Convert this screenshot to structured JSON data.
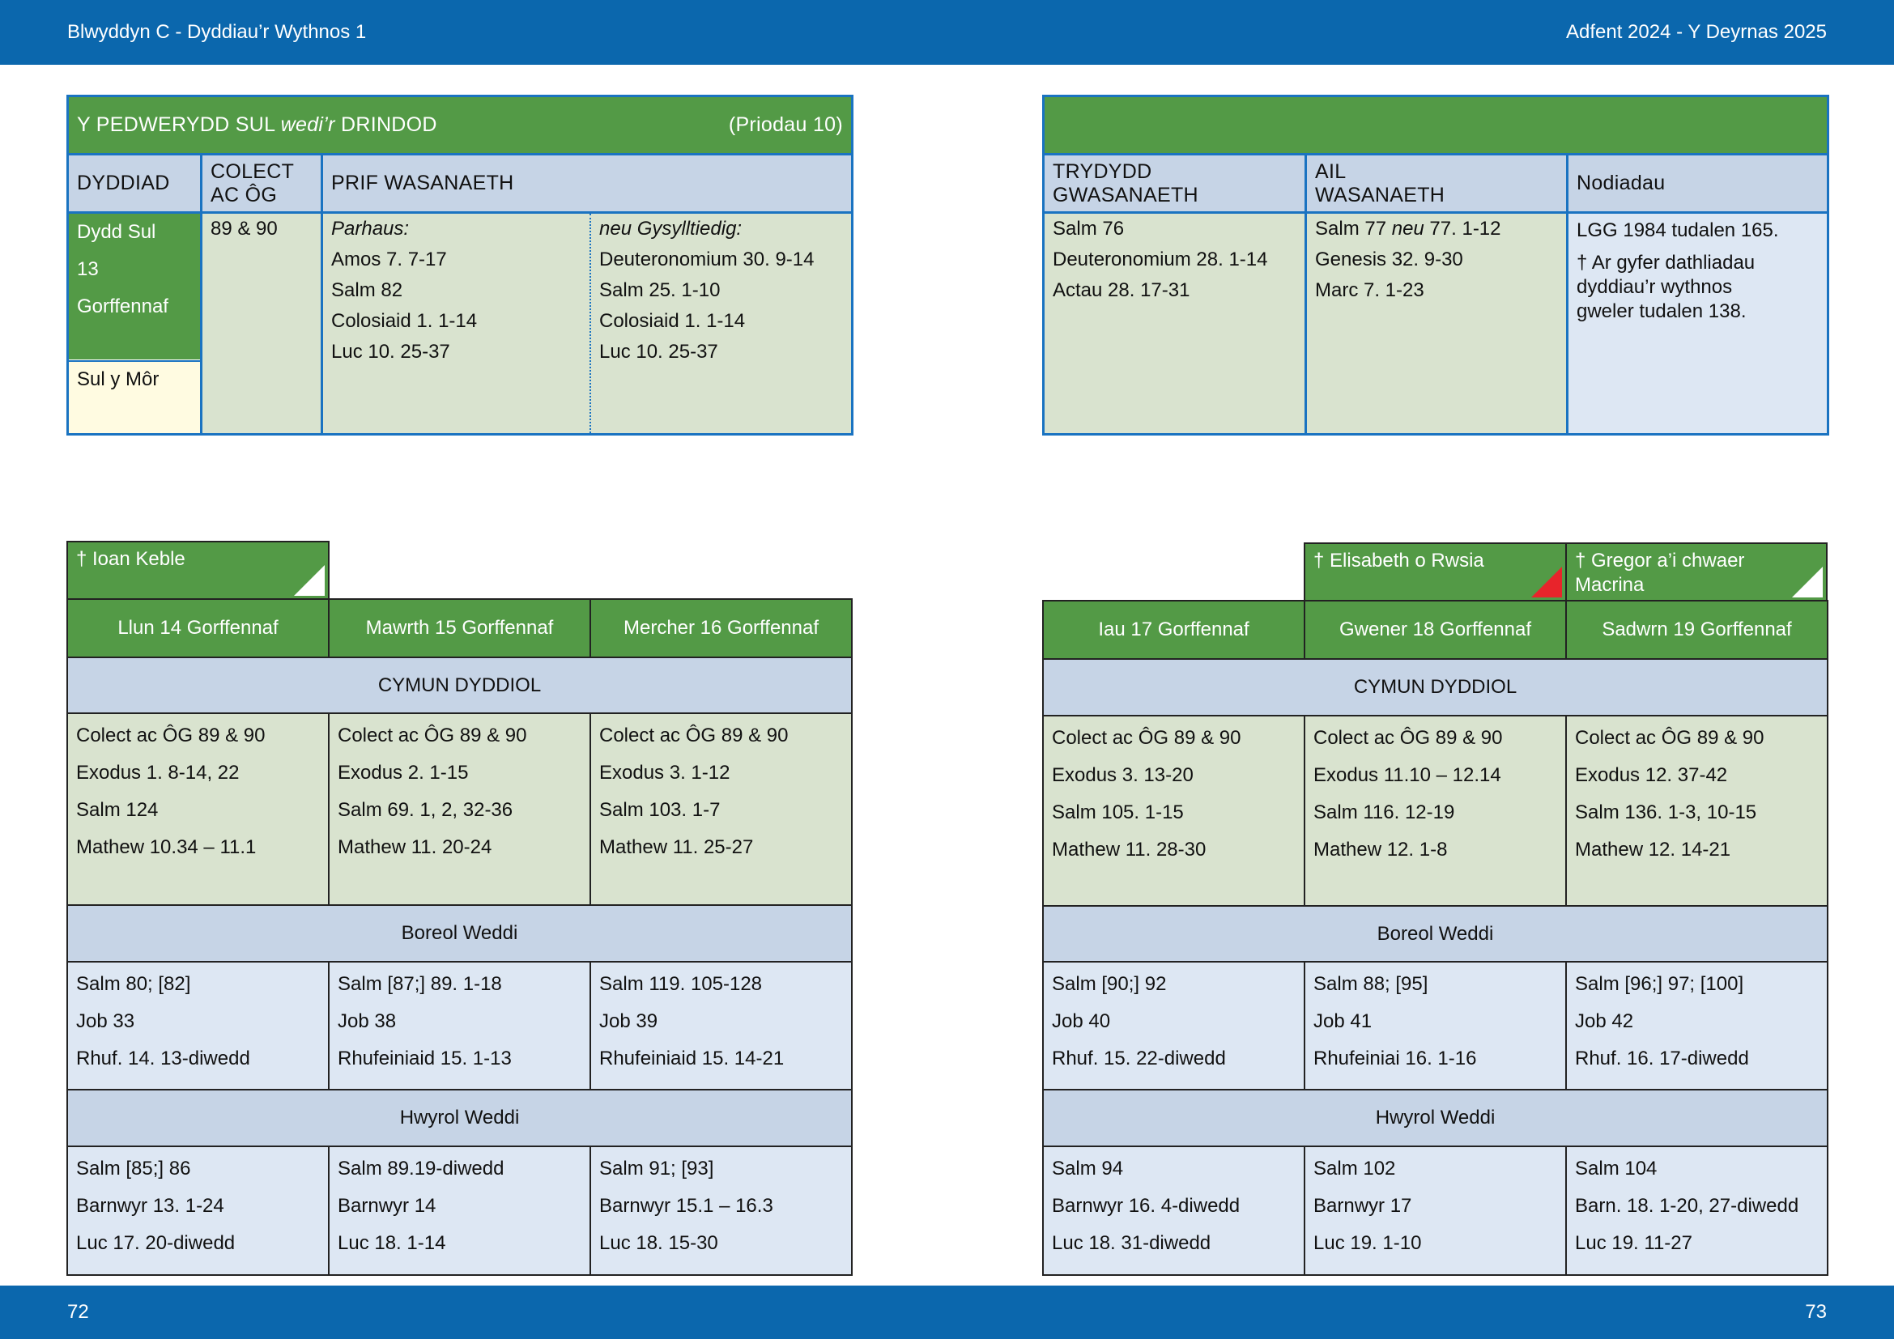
{
  "header": {
    "left": "Blwyddyn  C - Dyddiau’r Wythnos 1",
    "right": "Adfent  2024 - Y Deyrnas 2025"
  },
  "footer": {
    "page_left": "72",
    "page_right": "73"
  },
  "sunday": {
    "title_pre": "Y PEDWERYDD SUL ",
    "title_italic": "wedi’r",
    "title_post": " DRINDOD",
    "ref": "(Priodau 10)",
    "col_date": "DYDDIAD",
    "col_collect_1": "COLECT",
    "col_collect_2": "AC ÔG",
    "col_main": "PRIF WASANAETH",
    "date_lines": [
      "Dydd Sul",
      "13",
      "Gorffennaf"
    ],
    "sunday_name": "Sul y Môr",
    "collect": "89 & 90",
    "main_a_head": "Parhaus:",
    "main_a": [
      "Amos 7. 7-17",
      "Salm 82",
      "Colosiaid 1. 1-14",
      "Luc 10. 25-37"
    ],
    "main_b_head": "neu Gysylltiedig:",
    "main_b": [
      "Deuteronomium 30. 9-14",
      "Salm 25. 1-10",
      "Colosiaid 1. 1-14",
      "Luc 10. 25-37"
    ],
    "col_third_1": "TRYDYDD",
    "col_third_2": "GWASANAETH",
    "col_second_1": "AIL",
    "col_second_2": "WASANAETH",
    "col_notes": "Nodiadau",
    "third": [
      "Salm 76",
      "Deuteronomium 28. 1-14",
      "Actau 28. 17-31"
    ],
    "second_first_pre": "Salm 77 ",
    "second_first_italic": "neu",
    "second_first_post": "  77. 1-12",
    "second_rest": [
      "Genesis 32. 9-30",
      "Marc 7. 1-23"
    ],
    "notes_1": "LGG 1984 tudalen 165.",
    "notes_2": [
      "† Ar gyfer dathliadau",
      "dyddiau’r wythnos",
      "gweler tudalen 138."
    ]
  },
  "left_week": {
    "tabs": [
      {
        "label": "† Ioan Keble",
        "marker_color": "#ffffff"
      }
    ],
    "days": [
      "Llun 14 Gorffennaf",
      "Mawrth 15 Gorffennaf",
      "Mercher 16 Gorffennaf"
    ],
    "euch_label": "CYMUN DYDDIOL",
    "euch": [
      [
        "Colect ac ÔG 89 & 90",
        "Exodus 1. 8-14, 22",
        "Salm 124",
        "Mathew 10.34 – 11.1"
      ],
      [
        "Colect ac ÔG 89 & 90",
        "Exodus 2. 1-15",
        "Salm 69. 1, 2, 32-36",
        "Mathew 11. 20-24"
      ],
      [
        "Colect ac ÔG 89 & 90",
        "Exodus 3. 1-12",
        "Salm 103. 1-7",
        "Mathew 11. 25-27"
      ]
    ],
    "morning_label": "Boreol Weddi",
    "morning": [
      [
        "Salm 80; [82]",
        "Job 33",
        "Rhuf. 14. 13-diwedd"
      ],
      [
        "Salm [87;] 89. 1-18",
        "Job 38",
        "Rhufeiniaid 15. 1-13"
      ],
      [
        "Salm 119. 105-128",
        "Job 39",
        "Rhufeiniaid 15. 14-21"
      ]
    ],
    "evening_label": "Hwyrol Weddi",
    "evening": [
      [
        "Salm [85;] 86",
        "Barnwyr 13. 1-24",
        "Luc 17. 20-diwedd"
      ],
      [
        "Salm 89.19-diwedd",
        "Barnwyr 14",
        "Luc 18. 1-14"
      ],
      [
        "Salm 91; [93]",
        "Barnwyr 15.1 – 16.3",
        "Luc 18. 15-30"
      ]
    ]
  },
  "right_week": {
    "tabs": [
      {
        "label": "† Elisabeth o Rwsia",
        "marker_color": "#e8242b"
      },
      {
        "label_1": "† Gregor a’i chwaer",
        "label_2": "Macrina",
        "marker_color": "#ffffff"
      }
    ],
    "days": [
      "Iau 17 Gorffennaf",
      "Gwener 18 Gorffennaf",
      "Sadwrn 19 Gorffennaf"
    ],
    "euch_label": "CYMUN DYDDIOL",
    "euch": [
      [
        "Colect ac ÔG 89 & 90",
        "Exodus 3. 13-20",
        "Salm 105. 1-15",
        "Mathew 11. 28-30"
      ],
      [
        "Colect ac ÔG 89 & 90",
        "Exodus 11.10 – 12.14",
        "Salm 116. 12-19",
        "Mathew 12. 1-8"
      ],
      [
        "Colect ac ÔG 89 & 90",
        "Exodus 12. 37-42",
        "Salm 136. 1-3, 10-15",
        "Mathew 12. 14-21"
      ]
    ],
    "morning_label": "Boreol Weddi",
    "morning": [
      [
        "Salm [90;] 92",
        "Job 40",
        "Rhuf. 15. 22-diwedd"
      ],
      [
        "Salm 88; [95]",
        "Job 41",
        "Rhufeiniai 16. 1-16"
      ],
      [
        "Salm [96;] 97; [100]",
        "Job 42",
        "Rhuf. 16. 17-diwedd"
      ]
    ],
    "evening_label": "Hwyrol Weddi",
    "evening": [
      [
        "Salm 94",
        "Barnwyr 16. 4-diwedd",
        "Luc 18. 31-diwedd"
      ],
      [
        "Salm 102",
        "Barnwyr 17",
        "Luc 19. 1-10"
      ],
      [
        "Salm 104",
        "Barn. 18. 1-20, 27-diwedd",
        "Luc 19. 11-27"
      ]
    ]
  }
}
